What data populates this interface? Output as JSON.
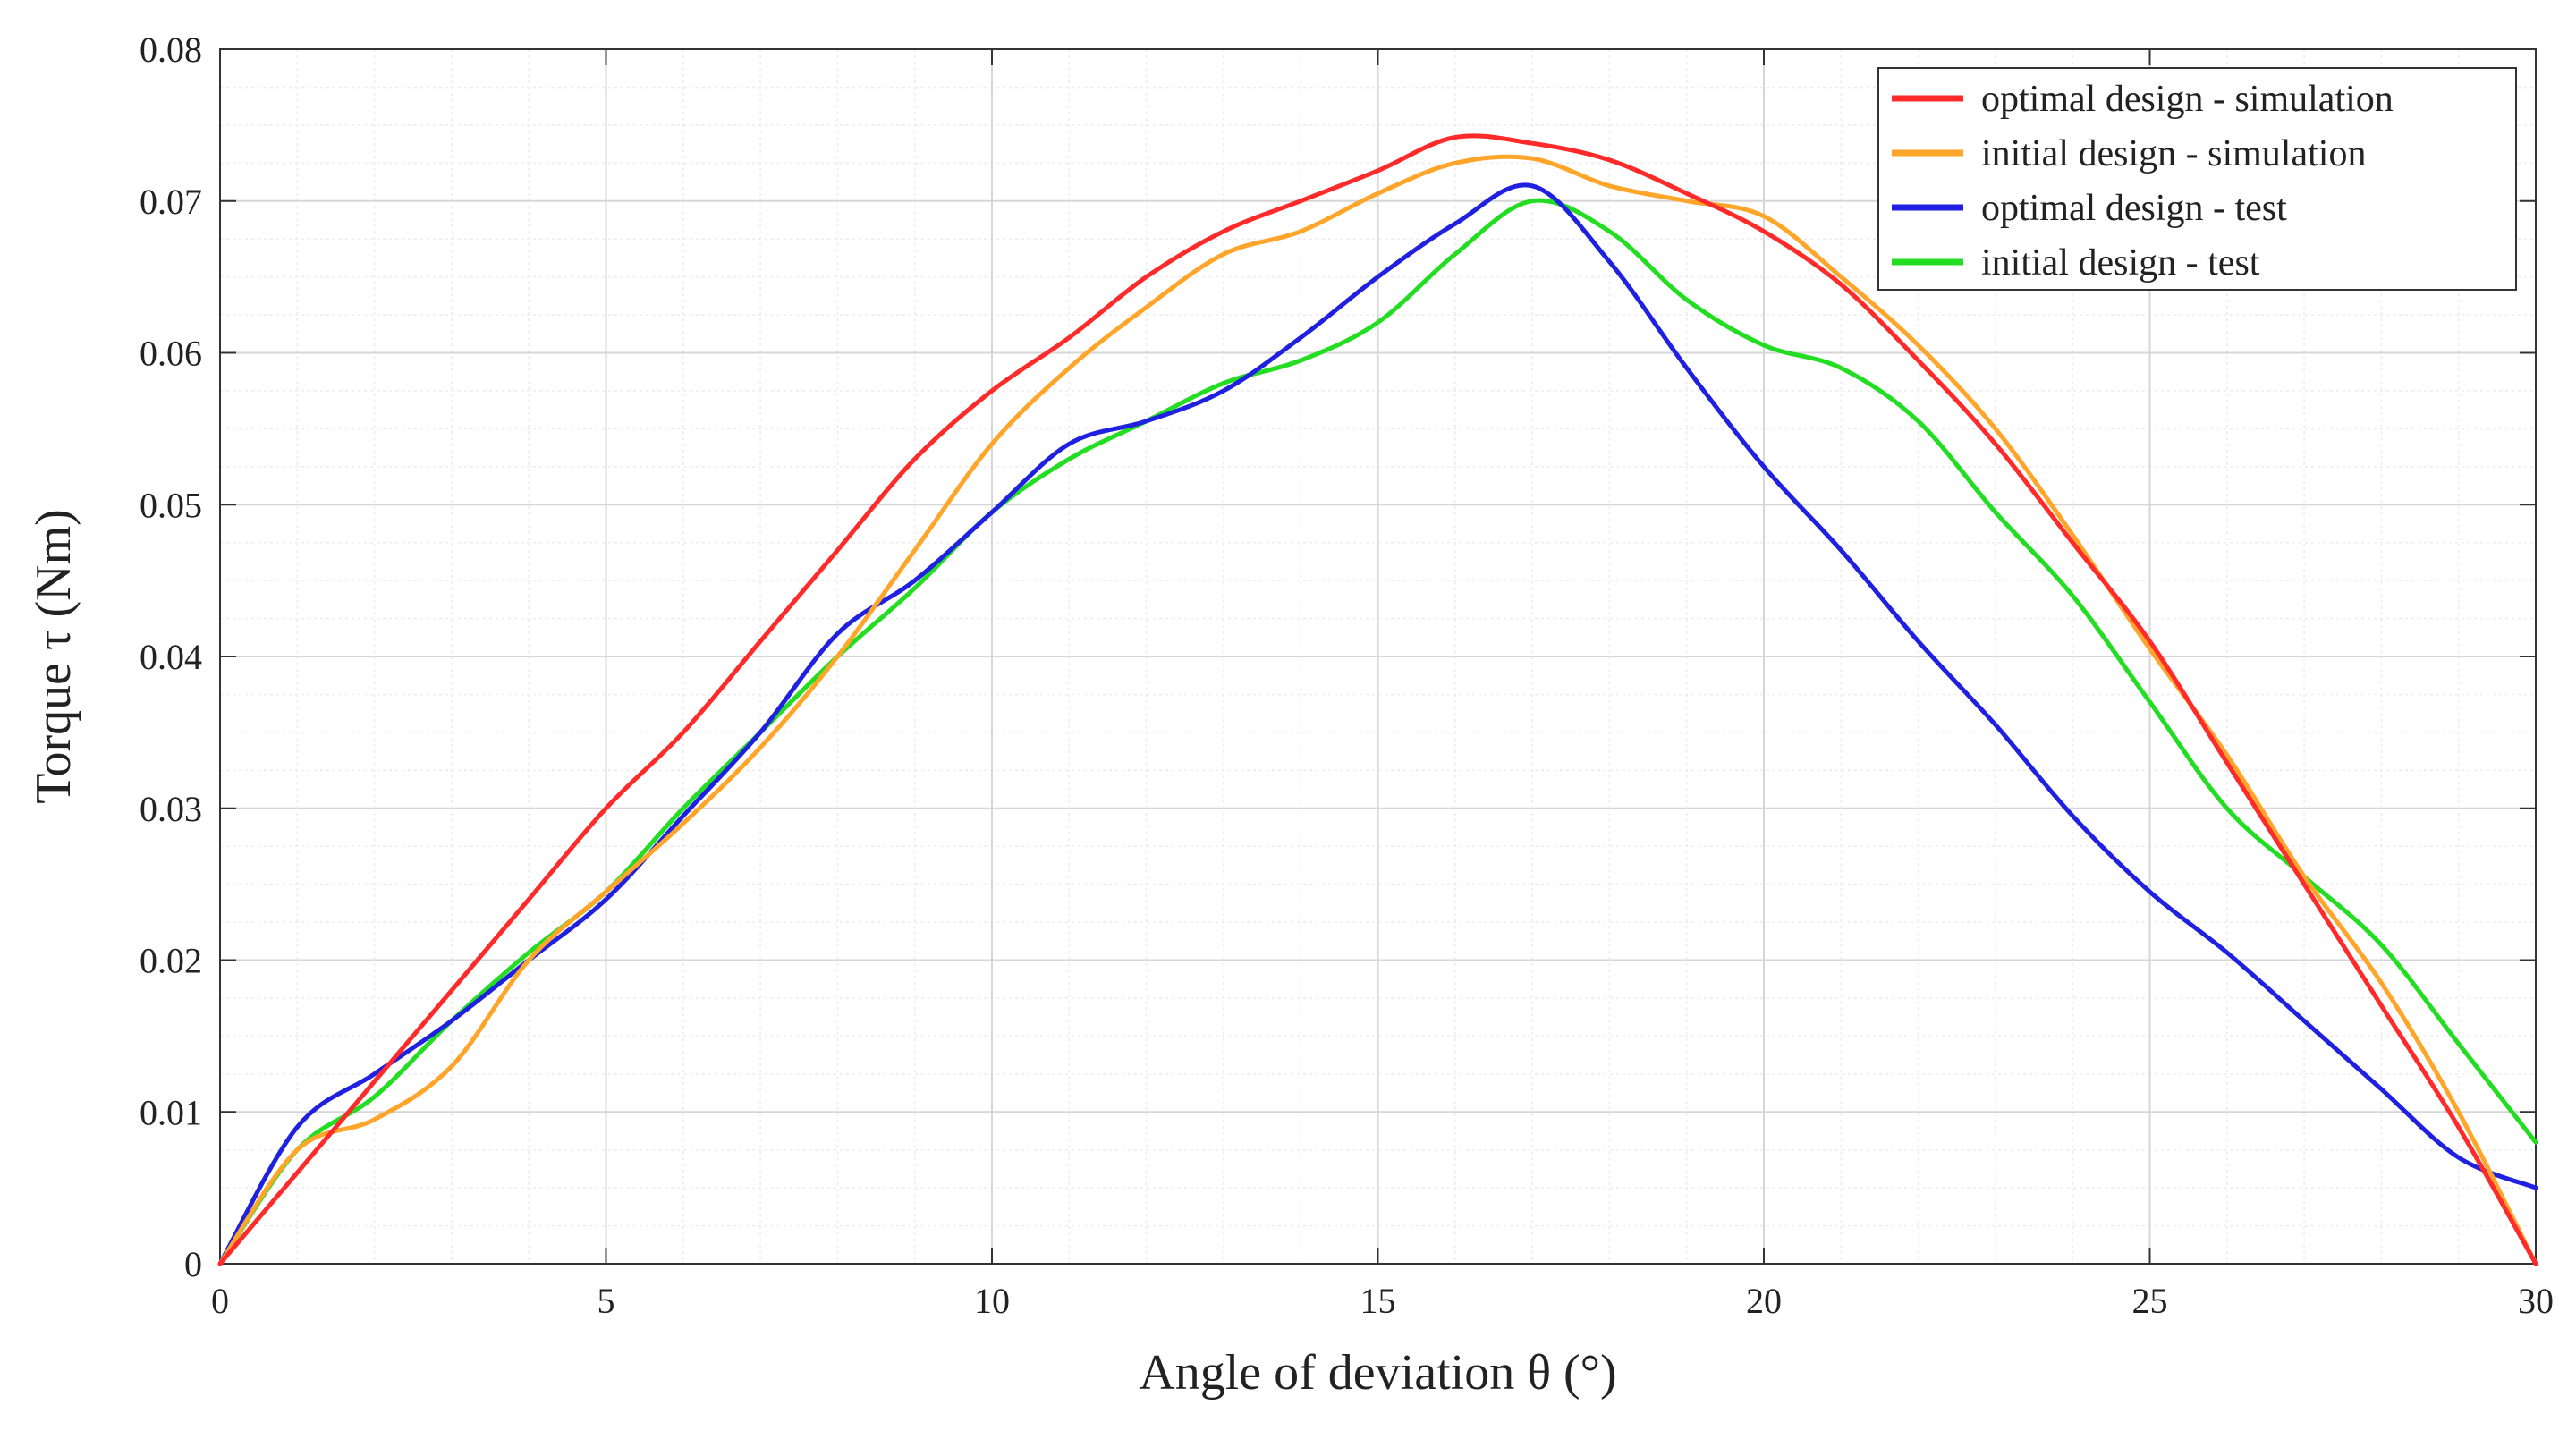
{
  "chart_data": {
    "type": "line",
    "xlabel": "Angle of deviation θ (°)",
    "ylabel": "Torque τ (Nm)",
    "xlim": [
      0,
      30
    ],
    "ylim": [
      0,
      0.08
    ],
    "x_ticks": [
      0,
      5,
      10,
      15,
      20,
      25,
      30
    ],
    "y_ticks": [
      0,
      0.01,
      0.02,
      0.03,
      0.04,
      0.05,
      0.06,
      0.07,
      0.08
    ],
    "x_tick_labels": [
      "0",
      "5",
      "10",
      "15",
      "20",
      "25",
      "30"
    ],
    "y_tick_labels": [
      "0",
      "0.01",
      "0.02",
      "0.03",
      "0.04",
      "0.05",
      "0.06",
      "0.07",
      "0.08"
    ],
    "grid": true,
    "minor_grid": true,
    "legend_position": "top-right",
    "series": [
      {
        "name": "optimal design - simulation",
        "color": "#ff2a2a",
        "x": [
          0,
          1,
          2,
          3,
          4,
          5,
          6,
          7,
          8,
          9,
          10,
          11,
          12,
          13,
          14,
          15,
          16,
          17,
          18,
          19,
          20,
          21,
          22,
          23,
          24,
          25,
          26,
          27,
          28,
          29,
          30
        ],
        "y": [
          0,
          0.006,
          0.012,
          0.018,
          0.024,
          0.03,
          0.035,
          0.041,
          0.047,
          0.053,
          0.0575,
          0.061,
          0.065,
          0.068,
          0.07,
          0.072,
          0.0742,
          0.0738,
          0.0727,
          0.0705,
          0.068,
          0.0645,
          0.0595,
          0.054,
          0.0475,
          0.041,
          0.033,
          0.025,
          0.017,
          0.009,
          0
        ]
      },
      {
        "name": "initial design - simulation",
        "color": "#ffa52a",
        "x": [
          0,
          1,
          2,
          3,
          4,
          5,
          6,
          7,
          8,
          9,
          10,
          11,
          12,
          13,
          14,
          15,
          16,
          17,
          18,
          19,
          20,
          21,
          22,
          23,
          24,
          25,
          26,
          27,
          28,
          29,
          30
        ],
        "y": [
          0,
          0.0075,
          0.0095,
          0.013,
          0.02,
          0.0245,
          0.029,
          0.034,
          0.04,
          0.047,
          0.054,
          0.059,
          0.063,
          0.0665,
          0.068,
          0.0705,
          0.0725,
          0.0728,
          0.071,
          0.07,
          0.069,
          0.065,
          0.0605,
          0.055,
          0.048,
          0.0405,
          0.0335,
          0.0255,
          0.0185,
          0.01,
          0
        ]
      },
      {
        "name": "optimal design - test",
        "color": "#2020e0",
        "x": [
          0,
          1,
          2,
          3,
          4,
          5,
          6,
          7,
          8,
          9,
          10,
          11,
          12,
          13,
          14,
          15,
          16,
          17,
          18,
          19,
          20,
          21,
          22,
          23,
          24,
          25,
          26,
          27,
          28,
          29,
          30
        ],
        "y": [
          0,
          0.009,
          0.0125,
          0.016,
          0.02,
          0.024,
          0.0295,
          0.035,
          0.0415,
          0.045,
          0.0495,
          0.054,
          0.0555,
          0.0575,
          0.061,
          0.065,
          0.0685,
          0.071,
          0.066,
          0.059,
          0.0525,
          0.047,
          0.041,
          0.0355,
          0.0295,
          0.0245,
          0.0205,
          0.016,
          0.0115,
          0.007,
          0.005
        ]
      },
      {
        "name": "initial design - test",
        "color": "#22dd22",
        "x": [
          0,
          1,
          2,
          3,
          4,
          5,
          6,
          7,
          8,
          9,
          10,
          11,
          12,
          13,
          14,
          15,
          16,
          17,
          18,
          19,
          20,
          21,
          22,
          23,
          24,
          25,
          26,
          27,
          28,
          29,
          30
        ],
        "y": [
          0,
          0.0075,
          0.011,
          0.016,
          0.0205,
          0.0245,
          0.03,
          0.035,
          0.04,
          0.0445,
          0.0495,
          0.053,
          0.0555,
          0.058,
          0.0595,
          0.062,
          0.0665,
          0.07,
          0.068,
          0.0635,
          0.0605,
          0.059,
          0.0555,
          0.0495,
          0.044,
          0.037,
          0.03,
          0.0255,
          0.021,
          0.0145,
          0.008
        ]
      }
    ]
  }
}
